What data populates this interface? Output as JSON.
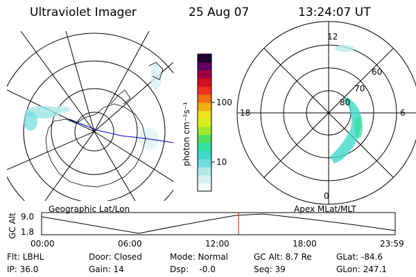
{
  "header": {
    "instrument": "Ultraviolet Imager",
    "date": "25 Aug 07",
    "time": "13:24:07 UT"
  },
  "maps": {
    "geographic_label": "Geographic Lat/Lon",
    "magnetic_label": "Apex MLat/MLT",
    "mlt_labels": {
      "top": "12",
      "left": "18",
      "right": "6",
      "bottom": "0"
    },
    "mlat_labels": [
      "60",
      "70",
      "80"
    ]
  },
  "colorbar": {
    "unit_label": "photon cm⁻²s⁻¹",
    "tick_100": "100",
    "tick_10": "10",
    "colors": [
      "#f4fafa",
      "#d8f0f0",
      "#b0e8e8",
      "#70dcdc",
      "#40d8c8",
      "#30e0a0",
      "#50e060",
      "#a0e830",
      "#d8f020",
      "#f0e020",
      "#f0b010",
      "#f07010",
      "#f03020",
      "#d01020",
      "#a00040",
      "#600060",
      "#200030"
    ]
  },
  "timeline": {
    "y_label": "GC Alt",
    "y_top": "9.0",
    "y_bottom": "1.8",
    "ticks": [
      "00:00",
      "06:00",
      "12:00",
      "18:00",
      "23:59"
    ],
    "current_marker": "13:24"
  },
  "status": {
    "filter": "Flt: LBHL",
    "door": "Door: Closed",
    "mode": "Mode: Normal",
    "gc_alt": "GC Alt: 8.7 Re",
    "glat": "GLat: -84.6",
    "ip": "IP: 36.0",
    "gain": "Gain: 14",
    "dsp": "Dsp:    -0.0",
    "seq": "Seq: 39",
    "glon": "GLon: 247.1"
  }
}
